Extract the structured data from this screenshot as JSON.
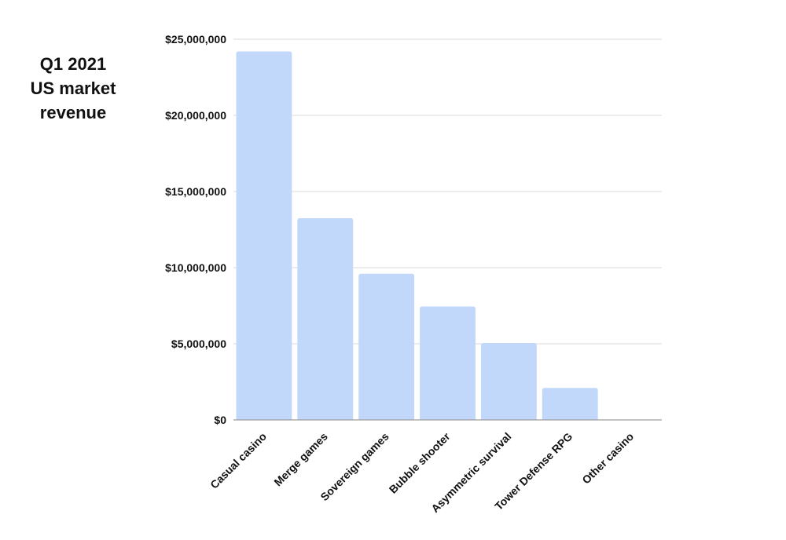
{
  "chart_data": {
    "type": "bar",
    "title_lines": [
      "Q1 2021",
      "US market",
      "revenue"
    ],
    "xlabel": "",
    "ylabel": "",
    "categories": [
      "Casual casino",
      "Merge games",
      "Sovereign games",
      "Bubble shooter",
      "Asymmetric survival",
      "Tower Defense RPG",
      "Other casino"
    ],
    "values": [
      24200000,
      13250000,
      9600000,
      7450000,
      5050000,
      2100000,
      0
    ],
    "ylim": [
      0,
      25000000
    ],
    "yticks": [
      0,
      5000000,
      10000000,
      15000000,
      20000000,
      25000000
    ],
    "ytick_labels": [
      "$0",
      "$5,000,000",
      "$10,000,000",
      "$15,000,000",
      "$20,000,000",
      "$25,000,000"
    ],
    "grid": true,
    "legend": "none",
    "bar_color": "#c2d8fb",
    "grid_color": "#d9d9d9",
    "axis_color": "#9e9e9e"
  }
}
